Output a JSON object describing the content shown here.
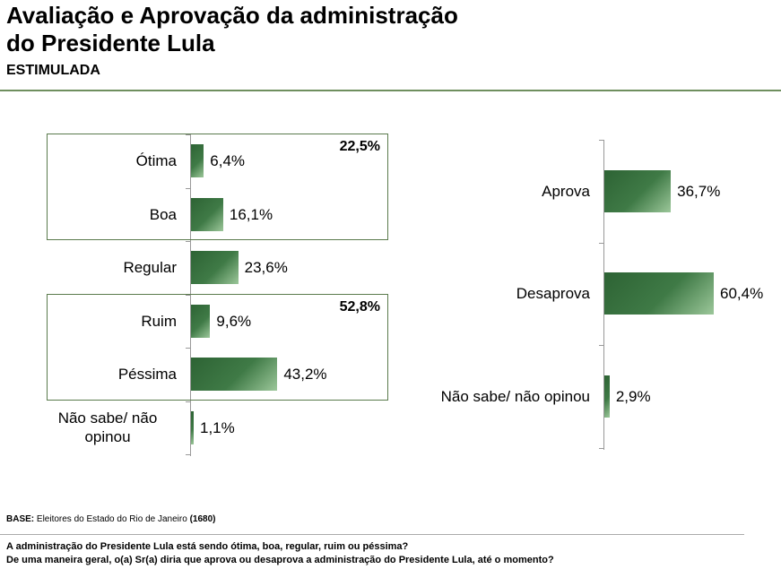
{
  "header": {
    "title_line1": "Avaliação e Aprovação da administração",
    "title_line2": "do Presidente Lula",
    "subtitle": "ESTIMULADA"
  },
  "chart_data": [
    {
      "type": "bar",
      "orientation": "horizontal",
      "categories": [
        "Ótima",
        "Boa",
        "Regular",
        "Ruim",
        "Péssima",
        "Não sabe/ não opinou"
      ],
      "values": [
        6.4,
        16.1,
        23.6,
        9.6,
        43.2,
        1.1
      ],
      "value_labels": [
        "6,4%",
        "16,1%",
        "23,6%",
        "9,6%",
        "43,2%",
        "1,1%"
      ],
      "groups": [
        {
          "categories": [
            "Ótima",
            "Boa"
          ],
          "total": 22.5,
          "total_label": "22,5%"
        },
        {
          "categories": [
            "Ruim",
            "Péssima"
          ],
          "total": 52.8,
          "total_label": "52,8%"
        }
      ],
      "xlim": [
        0,
        100
      ],
      "grid": false
    },
    {
      "type": "bar",
      "orientation": "horizontal",
      "categories": [
        "Aprova",
        "Desaprova",
        "Não sabe/ não opinou"
      ],
      "values": [
        36.7,
        60.4,
        2.9
      ],
      "value_labels": [
        "36,7%",
        "60,4%",
        "2,9%"
      ],
      "xlim": [
        0,
        100
      ],
      "grid": false
    }
  ],
  "footer": {
    "base_label": "BASE:",
    "base_text": " Eleitores do Estado do Rio de Janeiro ",
    "base_count": "(1680)",
    "question1": "A administração do Presidente Lula está sendo ótima, boa, regular, ruim ou péssima?",
    "question2": "De uma maneira geral, o(a) Sr(a) diria que aprova ou desaprova a administração do Presidente Lula, até o momento?"
  }
}
